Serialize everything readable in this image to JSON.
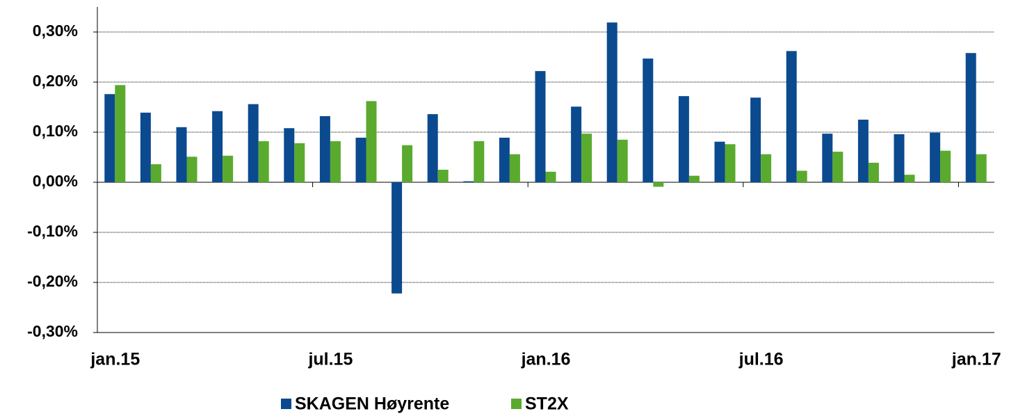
{
  "chart_data": {
    "type": "bar",
    "categories": [
      "jan.15",
      null,
      null,
      null,
      null,
      null,
      "jul.15",
      null,
      null,
      null,
      null,
      null,
      "jan.16",
      null,
      null,
      null,
      null,
      null,
      "jul.16",
      null,
      null,
      null,
      null,
      null,
      "jan.17"
    ],
    "series": [
      {
        "name": "SKAGEN Høyrente",
        "color": "#0b4a8f",
        "values": [
          0.176,
          0.139,
          0.11,
          0.142,
          0.156,
          0.108,
          0.132,
          0.089,
          -0.222,
          0.136,
          0.002,
          0.089,
          0.222,
          0.151,
          0.319,
          0.247,
          0.172,
          0.081,
          0.169,
          0.262,
          0.097,
          0.125,
          0.096,
          0.099,
          0.258
        ]
      },
      {
        "name": "ST2X",
        "color": "#5aaa2e",
        "values": [
          0.194,
          0.036,
          0.051,
          0.053,
          0.082,
          0.078,
          0.082,
          0.162,
          0.074,
          0.025,
          0.082,
          0.056,
          0.021,
          0.097,
          0.085,
          -0.009,
          0.013,
          0.076,
          0.056,
          0.023,
          0.061,
          0.039,
          0.015,
          0.063,
          0.056
        ]
      }
    ],
    "ylim": [
      -0.3,
      0.3
    ],
    "yticks": [
      {
        "value": -0.3,
        "label": "-0,30%"
      },
      {
        "value": -0.2,
        "label": "-0,20%"
      },
      {
        "value": -0.1,
        "label": "-0,10%"
      },
      {
        "value": 0,
        "label": "0,00%"
      },
      {
        "value": 0.1,
        "label": "0,10%"
      },
      {
        "value": 0.2,
        "label": "0,20%"
      },
      {
        "value": 0.3,
        "label": "0,30%"
      }
    ],
    "grid": true
  }
}
